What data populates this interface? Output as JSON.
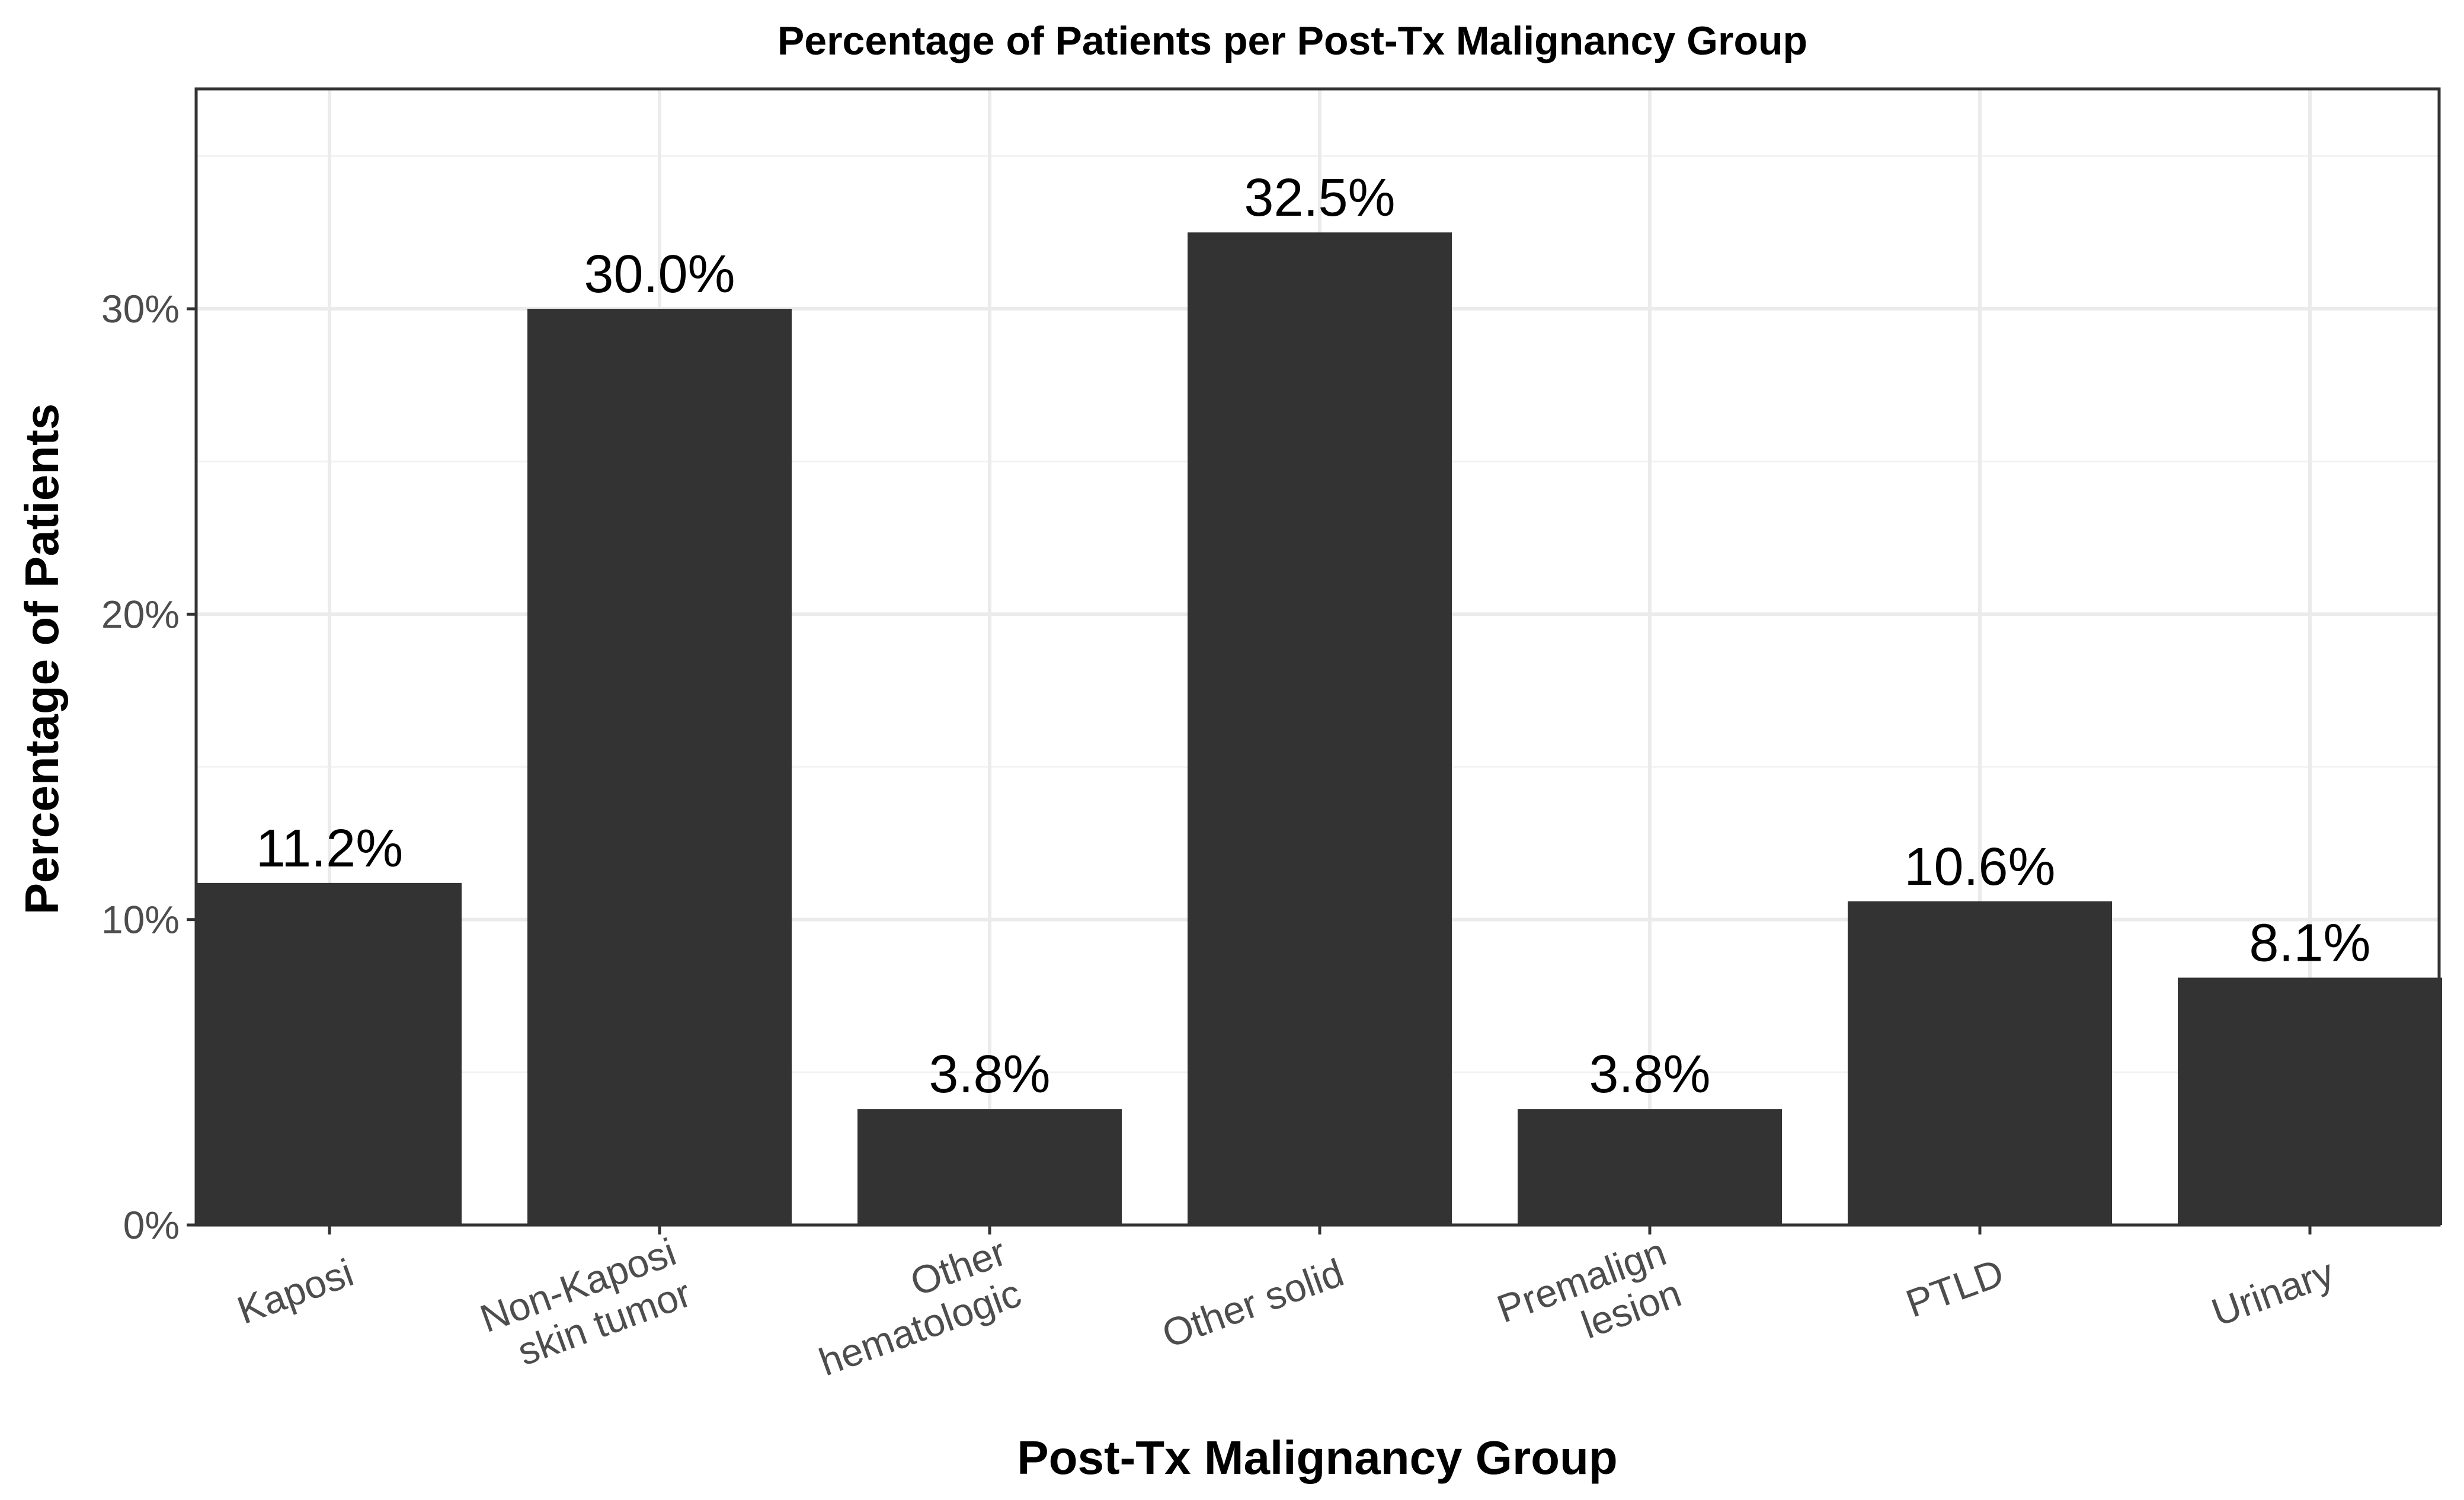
{
  "chart_data": {
    "type": "bar",
    "title": "Percentage of Patients per Post-Tx Malignancy Group",
    "xlabel": "Post-Tx Malignancy Group",
    "ylabel": "Percentage of Patients",
    "categories": [
      [
        "Kaposi"
      ],
      [
        "Non-Kaposi",
        "skin tumor"
      ],
      [
        "Other",
        "hematologic"
      ],
      [
        "Other solid"
      ],
      [
        "Premalign",
        "lesion"
      ],
      [
        "PTLD"
      ],
      [
        "Urinary"
      ]
    ],
    "values": [
      11.2,
      30.0,
      3.8,
      32.5,
      3.8,
      10.6,
      8.1
    ],
    "value_labels": [
      "11.2%",
      "30.0%",
      "3.8%",
      "32.5%",
      "3.8%",
      "10.6%",
      "8.1%"
    ],
    "yticks": [
      0,
      10,
      20,
      30
    ],
    "ytick_labels": [
      "0%",
      "10%",
      "20%",
      "30%"
    ],
    "ylim": [
      0,
      37.2
    ],
    "grid": true,
    "bar_color": "#333333",
    "legend": "none"
  }
}
